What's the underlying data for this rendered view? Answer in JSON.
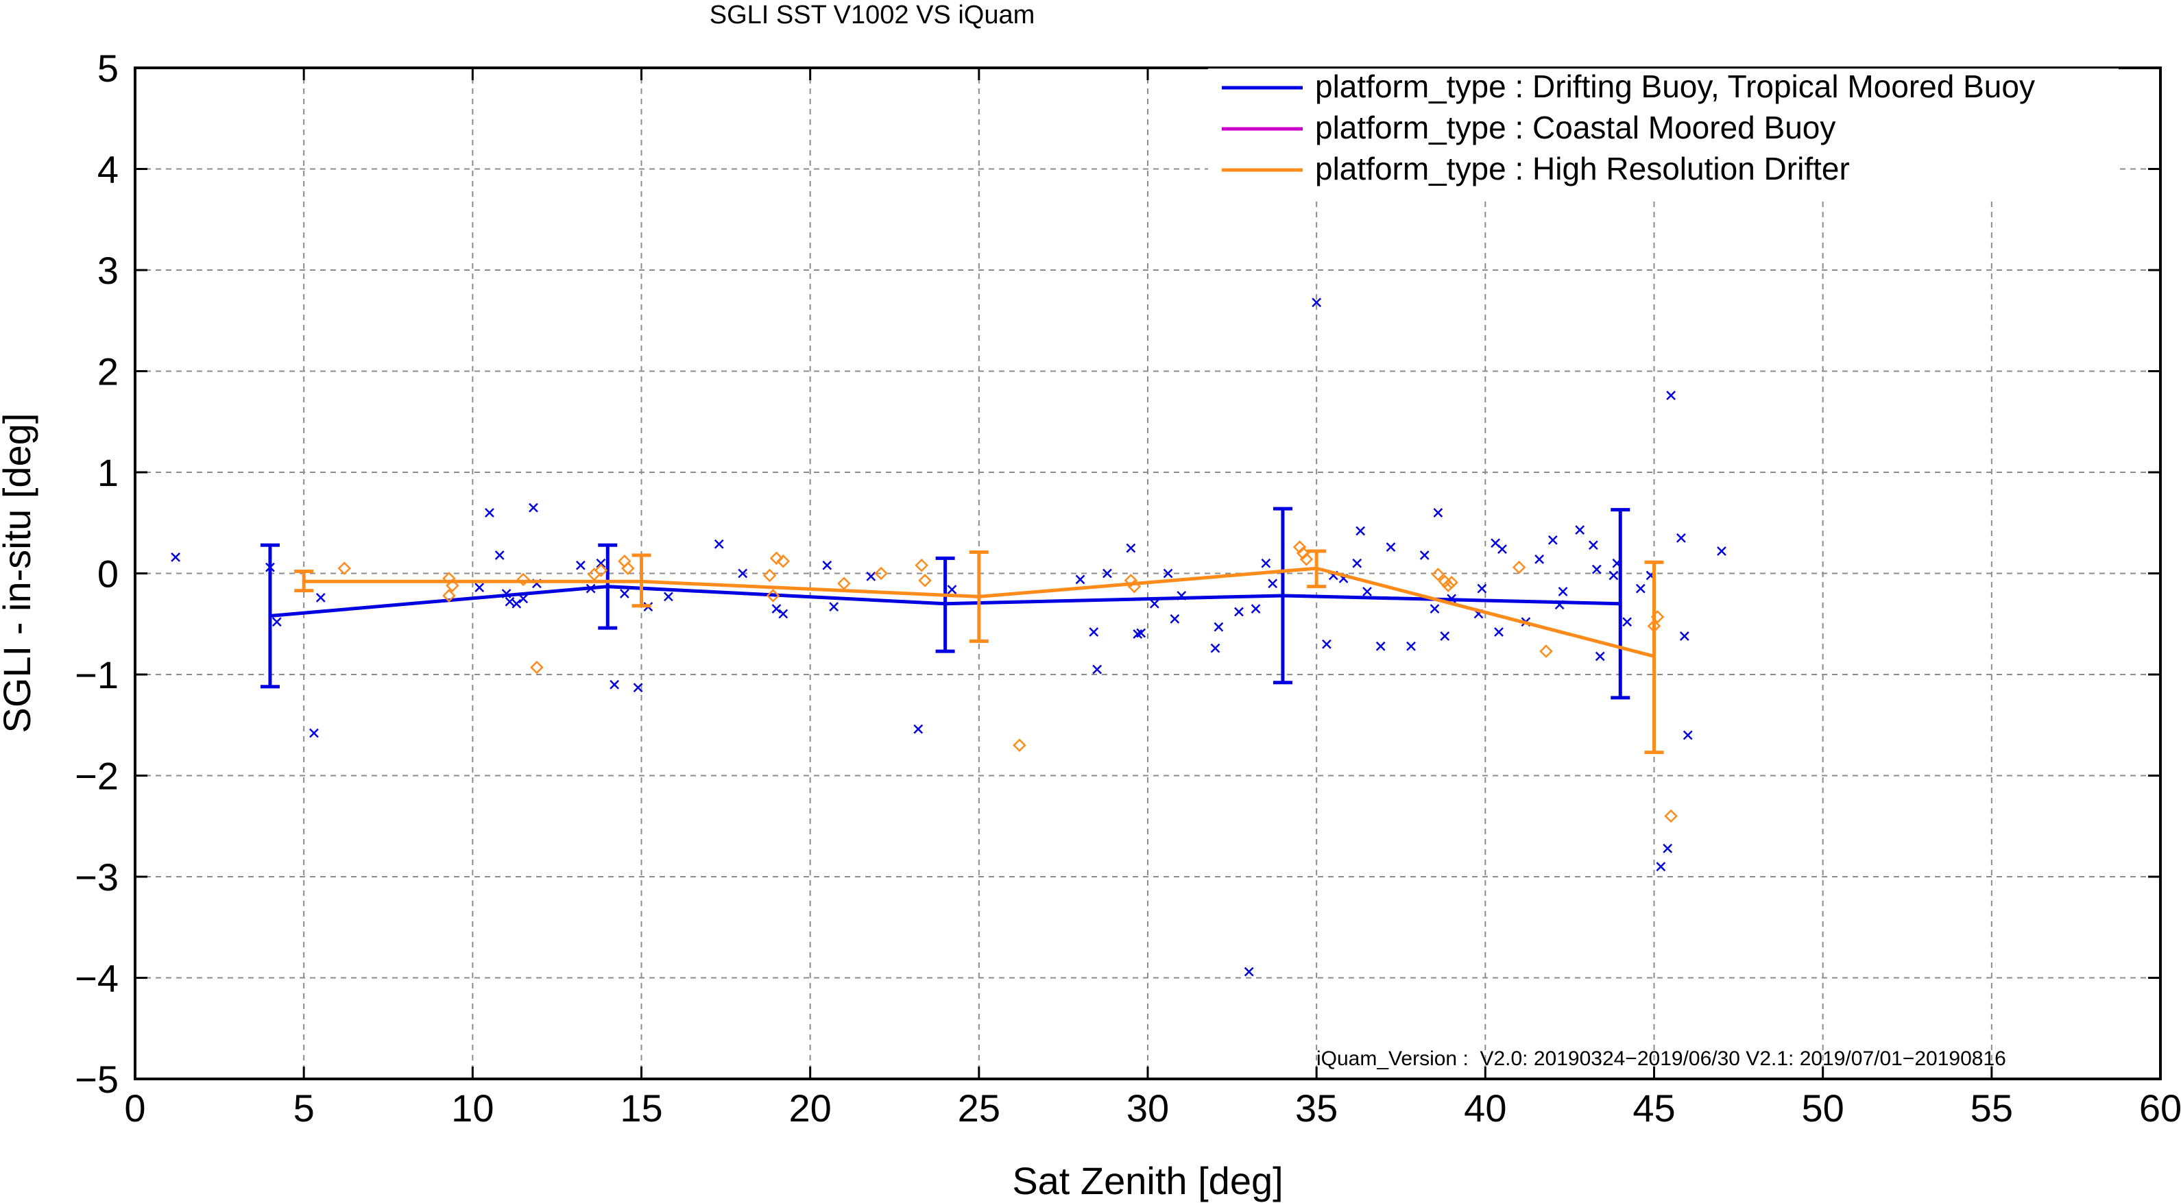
{
  "chart_data": {
    "type": "line",
    "title": "SGLI SST V1002 VS iQuam",
    "xlabel": "Sat Zenith [deg]",
    "ylabel": "SGLI - in-situ [deg]",
    "xlim": [
      0,
      60
    ],
    "ylim": [
      -5,
      5
    ],
    "x_ticks": [
      0,
      5,
      10,
      15,
      20,
      25,
      30,
      35,
      40,
      45,
      50,
      55,
      60
    ],
    "y_ticks": [
      -5,
      -4,
      -3,
      -2,
      -1,
      0,
      1,
      2,
      3,
      4,
      5
    ],
    "x_tick_labels": [
      "0",
      "5",
      "10",
      "15",
      "20",
      "25",
      "30",
      "35",
      "40",
      "45",
      "50",
      "55",
      "60"
    ],
    "y_tick_labels": [
      "−5",
      "−4",
      "−3",
      "−2",
      "−1",
      "0",
      "1",
      "2",
      "3",
      "4",
      "5"
    ],
    "grid": true,
    "legend_position": "top-right",
    "annotation": "iQuam_Version :  V2.0: 20190324−2019/06/30 V2.1: 2019/07/01−20190816",
    "series": [
      {
        "name": "platform_type : Drifting Buoy, Tropical Moored Buoy",
        "color": "#0000e0",
        "marker": "x",
        "line": {
          "x": [
            4,
            14,
            24,
            34,
            44
          ],
          "y": [
            -0.42,
            -0.13,
            -0.3,
            -0.22,
            -0.3
          ]
        },
        "error_bars": [
          {
            "x": 4,
            "low": -1.12,
            "high": 0.28
          },
          {
            "x": 14,
            "low": -0.54,
            "high": 0.28
          },
          {
            "x": 24,
            "low": -0.77,
            "high": 0.15
          },
          {
            "x": 34,
            "low": -1.08,
            "high": 0.64
          },
          {
            "x": 44,
            "low": -1.23,
            "high": 0.63
          }
        ],
        "points": [
          [
            1.2,
            0.16
          ],
          [
            4.0,
            0.06
          ],
          [
            4.2,
            -0.48
          ],
          [
            5.3,
            -1.58
          ],
          [
            5.5,
            -0.24
          ],
          [
            10.2,
            -0.14
          ],
          [
            10.5,
            0.6
          ],
          [
            10.8,
            0.18
          ],
          [
            11.0,
            -0.2
          ],
          [
            11.1,
            -0.28
          ],
          [
            11.3,
            -0.3
          ],
          [
            11.5,
            -0.25
          ],
          [
            11.8,
            0.65
          ],
          [
            11.9,
            -0.1
          ],
          [
            13.2,
            0.08
          ],
          [
            13.5,
            -0.15
          ],
          [
            13.8,
            0.1
          ],
          [
            14.2,
            -1.1
          ],
          [
            14.5,
            -0.2
          ],
          [
            14.9,
            -1.13
          ],
          [
            15.2,
            -0.33
          ],
          [
            15.8,
            -0.23
          ],
          [
            17.3,
            0.29
          ],
          [
            18.0,
            0.0
          ],
          [
            19.0,
            -0.35
          ],
          [
            19.2,
            -0.4
          ],
          [
            20.5,
            0.08
          ],
          [
            20.7,
            -0.33
          ],
          [
            21.8,
            -0.03
          ],
          [
            23.2,
            -1.54
          ],
          [
            24.2,
            -0.16
          ],
          [
            28.0,
            -0.06
          ],
          [
            28.4,
            -0.58
          ],
          [
            28.5,
            -0.95
          ],
          [
            28.8,
            0.0
          ],
          [
            29.5,
            0.25
          ],
          [
            29.7,
            -0.6
          ],
          [
            29.8,
            -0.59
          ],
          [
            30.2,
            -0.3
          ],
          [
            30.6,
            0.0
          ],
          [
            30.8,
            -0.45
          ],
          [
            31.0,
            -0.22
          ],
          [
            32.0,
            -0.74
          ],
          [
            32.1,
            -0.53
          ],
          [
            32.7,
            -0.38
          ],
          [
            33.0,
            -3.94
          ],
          [
            33.2,
            -0.35
          ],
          [
            33.5,
            0.1
          ],
          [
            33.7,
            -0.1
          ],
          [
            35.0,
            2.68
          ],
          [
            35.3,
            -0.7
          ],
          [
            35.5,
            -0.02
          ],
          [
            35.8,
            -0.05
          ],
          [
            36.2,
            0.1
          ],
          [
            36.3,
            0.42
          ],
          [
            36.5,
            -0.18
          ],
          [
            36.9,
            -0.72
          ],
          [
            37.2,
            0.26
          ],
          [
            37.8,
            -0.72
          ],
          [
            38.2,
            0.18
          ],
          [
            38.5,
            -0.35
          ],
          [
            38.6,
            0.6
          ],
          [
            38.8,
            -0.62
          ],
          [
            39.0,
            -0.25
          ],
          [
            39.8,
            -0.4
          ],
          [
            39.9,
            -0.15
          ],
          [
            40.3,
            0.3
          ],
          [
            40.4,
            -0.58
          ],
          [
            40.5,
            0.24
          ],
          [
            41.2,
            -0.48
          ],
          [
            41.6,
            0.14
          ],
          [
            42.0,
            0.33
          ],
          [
            42.2,
            -0.31
          ],
          [
            42.3,
            -0.18
          ],
          [
            42.8,
            0.43
          ],
          [
            43.2,
            0.28
          ],
          [
            43.3,
            0.04
          ],
          [
            43.4,
            -0.82
          ],
          [
            43.8,
            -0.02
          ],
          [
            43.9,
            0.1
          ],
          [
            44.2,
            -0.48
          ],
          [
            44.6,
            -0.15
          ],
          [
            44.9,
            -0.02
          ],
          [
            45.2,
            -2.9
          ],
          [
            45.4,
            -2.72
          ],
          [
            45.5,
            1.76
          ],
          [
            45.8,
            0.35
          ],
          [
            45.9,
            -0.62
          ],
          [
            46.0,
            -1.6
          ],
          [
            47.0,
            0.22
          ]
        ]
      },
      {
        "name": "platform_type : Coastal Moored Buoy",
        "color": "#c800c8",
        "marker": "none",
        "line": {
          "x": [],
          "y": []
        },
        "error_bars": [],
        "points": []
      },
      {
        "name": "platform_type : High Resolution Drifter",
        "color": "#ff8c1a",
        "marker": "diamond",
        "line": {
          "x": [
            5,
            15,
            25,
            35,
            45
          ],
          "y": [
            -0.08,
            -0.08,
            -0.23,
            0.05,
            -0.82
          ]
        },
        "error_bars": [
          {
            "x": 5,
            "low": -0.17,
            "high": 0.02
          },
          {
            "x": 15,
            "low": -0.32,
            "high": 0.18
          },
          {
            "x": 25,
            "low": -0.67,
            "high": 0.21
          },
          {
            "x": 35,
            "low": -0.13,
            "high": 0.22
          },
          {
            "x": 45,
            "low": -1.77,
            "high": 0.11
          }
        ],
        "points": [
          [
            6.2,
            0.05
          ],
          [
            9.3,
            -0.05
          ],
          [
            9.4,
            -0.12
          ],
          [
            9.3,
            -0.22
          ],
          [
            11.5,
            -0.06
          ],
          [
            11.9,
            -0.93
          ],
          [
            13.6,
            -0.01
          ],
          [
            13.8,
            0.03
          ],
          [
            14.5,
            0.12
          ],
          [
            14.6,
            0.05
          ],
          [
            18.8,
            -0.02
          ],
          [
            18.9,
            -0.22
          ],
          [
            19.0,
            0.15
          ],
          [
            19.2,
            0.12
          ],
          [
            21.0,
            -0.1
          ],
          [
            22.1,
            0.0
          ],
          [
            23.3,
            0.08
          ],
          [
            23.4,
            -0.07
          ],
          [
            26.2,
            -1.7
          ],
          [
            29.5,
            -0.07
          ],
          [
            29.6,
            -0.13
          ],
          [
            34.5,
            0.26
          ],
          [
            34.6,
            0.2
          ],
          [
            34.7,
            0.14
          ],
          [
            38.6,
            -0.01
          ],
          [
            38.8,
            -0.08
          ],
          [
            38.9,
            -0.12
          ],
          [
            39.0,
            -0.09
          ],
          [
            41.0,
            0.06
          ],
          [
            41.8,
            -0.77
          ],
          [
            45.0,
            -0.52
          ],
          [
            45.1,
            -0.43
          ],
          [
            45.5,
            -2.4
          ]
        ]
      }
    ]
  }
}
